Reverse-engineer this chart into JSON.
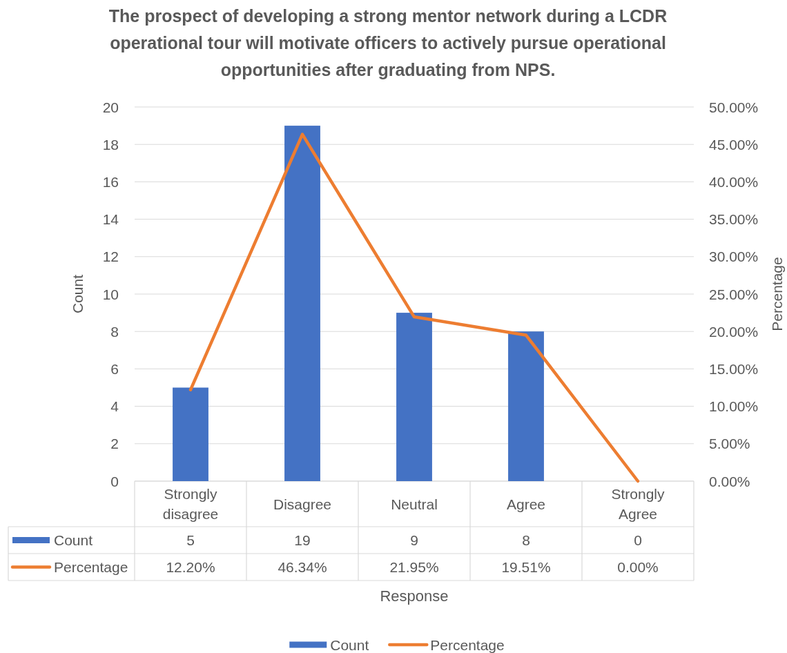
{
  "chart_data": {
    "type": "bar",
    "title": "The prospect of developing a strong mentor network during a LCDR operational tour will motivate officers to actively pursue operational opportunities after graduating from NPS.",
    "xlabel": "Response",
    "ylabel": "Count",
    "y2label": "Percentage",
    "categories": [
      "Strongly disagree",
      "Disagree",
      "Neutral",
      "Agree",
      "Strongly Agree"
    ],
    "series": [
      {
        "name": "Count",
        "color": "#4472c4",
        "values": [
          5,
          19,
          9,
          8,
          0
        ],
        "value_labels": [
          "5",
          "19",
          "9",
          "8",
          "0"
        ]
      },
      {
        "name": "Percentage",
        "type": "line",
        "axis": "y2",
        "color": "#ed7d31",
        "values": [
          12.2,
          46.34,
          21.95,
          19.51,
          0
        ],
        "value_labels": [
          "12.20%",
          "46.34%",
          "21.95%",
          "19.51%",
          "0.00%"
        ]
      }
    ],
    "ylim": [
      0,
      20
    ],
    "yticks": [
      0,
      2,
      4,
      6,
      8,
      10,
      12,
      14,
      16,
      18,
      20
    ],
    "y2lim": [
      0,
      50
    ],
    "y2ticks": [
      {
        "value": 0,
        "label": "0.00%"
      },
      {
        "value": 5,
        "label": "5.00%"
      },
      {
        "value": 10,
        "label": "10.00%"
      },
      {
        "value": 15,
        "label": "15.00%"
      },
      {
        "value": 20,
        "label": "20.00%"
      },
      {
        "value": 25,
        "label": "25.00%"
      },
      {
        "value": 30,
        "label": "30.00%"
      },
      {
        "value": 35,
        "label": "35.00%"
      },
      {
        "value": 40,
        "label": "40.00%"
      },
      {
        "value": 45,
        "label": "45.00%"
      },
      {
        "value": 50,
        "label": "50.00%"
      }
    ],
    "grid": "y",
    "legend": "bottom"
  }
}
